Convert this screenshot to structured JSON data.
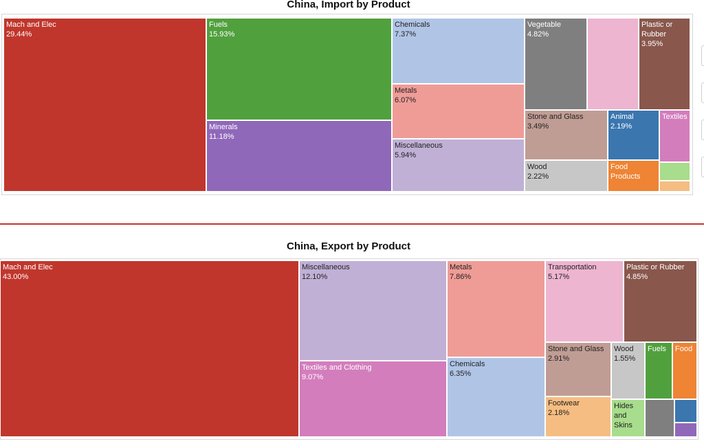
{
  "colors": {
    "divider": "#c0392b",
    "light_text": "#ffffff",
    "dark_text": "#222222"
  },
  "chart_data": [
    {
      "type": "treemap",
      "title": "China, Import by Product",
      "unit": "%",
      "tiles": [
        {
          "name": "Mach and Elec",
          "value": 29.44,
          "label": "29.44%",
          "color": "#c0362c"
        },
        {
          "name": "Fuels",
          "value": 15.93,
          "label": "15.93%",
          "color": "#51a03e"
        },
        {
          "name": "Minerals",
          "value": 11.18,
          "label": "11.18%",
          "color": "#9068b9"
        },
        {
          "name": "Chemicals",
          "value": 7.37,
          "label": "7.37%",
          "color": "#b0c5e6"
        },
        {
          "name": "Metals",
          "value": 6.07,
          "label": "6.07%",
          "color": "#ef9c97"
        },
        {
          "name": "Miscellaneous",
          "value": 5.94,
          "label": "5.94%",
          "color": "#c0b0d6"
        },
        {
          "name": "Vegetable",
          "value": 4.82,
          "label": "4.82%",
          "color": "#7f7f7f"
        },
        {
          "name": "",
          "value": 4.2,
          "label": "",
          "color": "#eeb5d0"
        },
        {
          "name": "Plastic or Rubber",
          "value": 3.95,
          "label": "3.95%",
          "color": "#89574c"
        },
        {
          "name": "Stone and Glass",
          "value": 3.49,
          "label": "3.49%",
          "color": "#c09d94"
        },
        {
          "name": "Animal",
          "value": 2.19,
          "label": "2.19%",
          "color": "#3b76af"
        },
        {
          "name": "Textiles",
          "value": 1.8,
          "label": "",
          "color": "#d37dbd"
        },
        {
          "name": "Wood",
          "value": 2.22,
          "label": "2.22%",
          "color": "#c7c7c7"
        },
        {
          "name": "Food Products",
          "value": 1.9,
          "label": "",
          "color": "#ee8434"
        },
        {
          "name": "",
          "value": 0.5,
          "label": "",
          "color": "#a7dd8c"
        },
        {
          "name": "",
          "value": 0.35,
          "label": "",
          "color": "#f5bd81"
        }
      ]
    },
    {
      "type": "treemap",
      "title": "China, Export by Product",
      "unit": "%",
      "tiles": [
        {
          "name": "Mach and Elec",
          "value": 43.0,
          "label": "43.00%",
          "color": "#c0362c"
        },
        {
          "name": "Miscellaneous",
          "value": 12.1,
          "label": "12.10%",
          "color": "#c0b0d6"
        },
        {
          "name": "Textiles and Clothing",
          "value": 9.07,
          "label": "9.07%",
          "color": "#d37dbd"
        },
        {
          "name": "Metals",
          "value": 7.86,
          "label": "7.86%",
          "color": "#ef9c97"
        },
        {
          "name": "Chemicals",
          "value": 6.35,
          "label": "6.35%",
          "color": "#b0c5e6"
        },
        {
          "name": "Transportation",
          "value": 5.17,
          "label": "5.17%",
          "color": "#eeb5d0"
        },
        {
          "name": "Plastic or Rubber",
          "value": 4.85,
          "label": "4.85%",
          "color": "#89574c"
        },
        {
          "name": "Stone and Glass",
          "value": 2.91,
          "label": "2.91%",
          "color": "#c09d94"
        },
        {
          "name": "Wood",
          "value": 1.55,
          "label": "1.55%",
          "color": "#c7c7c7"
        },
        {
          "name": "Fuels",
          "value": 1.0,
          "label": "",
          "color": "#51a03e"
        },
        {
          "name": "Food",
          "value": 1.0,
          "label": "",
          "color": "#ee8434"
        },
        {
          "name": "Footwear",
          "value": 2.18,
          "label": "2.18%",
          "color": "#f5bd81"
        },
        {
          "name": "Hides and Skins",
          "value": 1.0,
          "label": "",
          "color": "#a7dd8c"
        },
        {
          "name": "",
          "value": 0.9,
          "label": "",
          "color": "#7f7f7f"
        },
        {
          "name": "",
          "value": 0.5,
          "label": "",
          "color": "#3b76af"
        },
        {
          "name": "",
          "value": 0.4,
          "label": "",
          "color": "#9068b9"
        }
      ]
    }
  ]
}
